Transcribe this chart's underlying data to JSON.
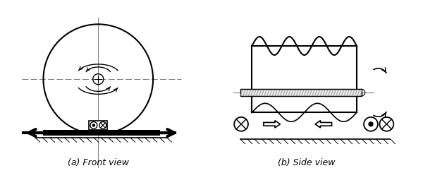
{
  "fig_width": 6.0,
  "fig_height": 2.62,
  "dpi": 100,
  "bg_color": "#ffffff",
  "label_a": "(a) Front view",
  "label_b": "(b) Side view",
  "font_size": 9
}
